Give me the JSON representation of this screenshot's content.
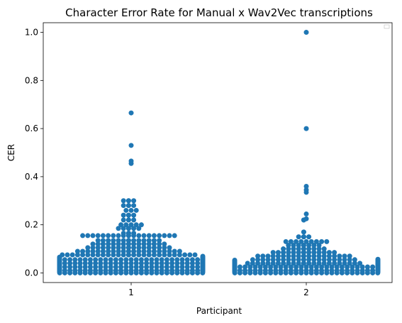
{
  "chart_data": {
    "type": "scatter",
    "subtype": "swarm",
    "title": "Character Error Rate for Manual x Wav2Vec transcriptions",
    "xlabel": "Participant",
    "ylabel": "CER",
    "categories": [
      "1",
      "2"
    ],
    "ylim": [
      -0.04,
      1.04
    ],
    "yticks": [
      0.0,
      0.2,
      0.4,
      0.6,
      0.8,
      1.0
    ],
    "ytick_labels": [
      "0.0",
      "0.2",
      "0.4",
      "0.6",
      "0.8",
      "1.0"
    ],
    "grid": false,
    "legend": "top-right (empty)",
    "marker_color": "#1f77b4",
    "series": [
      {
        "category": "1",
        "values": [
          0.0,
          0.0,
          0.0,
          0.0,
          0.0,
          0.0,
          0.0,
          0.0,
          0.0,
          0.0,
          0.0,
          0.0,
          0.0,
          0.0,
          0.0,
          0.0,
          0.0,
          0.0,
          0.0,
          0.0,
          0.0,
          0.0,
          0.0,
          0.0,
          0.0,
          0.0,
          0.0,
          0.0,
          0.0,
          0.0,
          0.0,
          0.0,
          0.0,
          0.0,
          0.0,
          0.0,
          0.0,
          0.0,
          0.0,
          0.0,
          0.0,
          0.0,
          0.0,
          0.0,
          0.0,
          0.0,
          0.0,
          0.0,
          0.0,
          0.0,
          0.0,
          0.0,
          0.0,
          0.0,
          0.0,
          0.0,
          0.0,
          0.0,
          0.0,
          0.0,
          0.01,
          0.01,
          0.01,
          0.01,
          0.01,
          0.01,
          0.01,
          0.01,
          0.01,
          0.01,
          0.01,
          0.01,
          0.01,
          0.01,
          0.01,
          0.01,
          0.01,
          0.01,
          0.01,
          0.01,
          0.01,
          0.01,
          0.01,
          0.01,
          0.01,
          0.01,
          0.01,
          0.01,
          0.01,
          0.01,
          0.01,
          0.01,
          0.01,
          0.01,
          0.01,
          0.01,
          0.01,
          0.01,
          0.01,
          0.01,
          0.01,
          0.01,
          0.01,
          0.01,
          0.01,
          0.01,
          0.01,
          0.01,
          0.01,
          0.01,
          0.025,
          0.025,
          0.025,
          0.025,
          0.025,
          0.025,
          0.025,
          0.025,
          0.025,
          0.025,
          0.025,
          0.025,
          0.025,
          0.025,
          0.025,
          0.025,
          0.025,
          0.025,
          0.025,
          0.025,
          0.025,
          0.025,
          0.025,
          0.025,
          0.025,
          0.025,
          0.025,
          0.025,
          0.025,
          0.025,
          0.025,
          0.025,
          0.025,
          0.025,
          0.025,
          0.025,
          0.025,
          0.025,
          0.025,
          0.025,
          0.04,
          0.04,
          0.04,
          0.04,
          0.04,
          0.04,
          0.04,
          0.04,
          0.04,
          0.04,
          0.04,
          0.04,
          0.04,
          0.04,
          0.04,
          0.04,
          0.04,
          0.04,
          0.04,
          0.04,
          0.04,
          0.04,
          0.04,
          0.04,
          0.04,
          0.04,
          0.04,
          0.04,
          0.04,
          0.04,
          0.04,
          0.04,
          0.04,
          0.04,
          0.04,
          0.04,
          0.04,
          0.04,
          0.055,
          0.055,
          0.055,
          0.055,
          0.055,
          0.055,
          0.055,
          0.055,
          0.055,
          0.055,
          0.055,
          0.055,
          0.055,
          0.055,
          0.055,
          0.055,
          0.055,
          0.055,
          0.055,
          0.055,
          0.055,
          0.055,
          0.055,
          0.055,
          0.055,
          0.055,
          0.055,
          0.055,
          0.055,
          0.055,
          0.055,
          0.055,
          0.055,
          0.055,
          0.055,
          0.055,
          0.075,
          0.075,
          0.075,
          0.075,
          0.075,
          0.075,
          0.075,
          0.075,
          0.075,
          0.075,
          0.075,
          0.075,
          0.075,
          0.075,
          0.075,
          0.075,
          0.075,
          0.075,
          0.075,
          0.075,
          0.075,
          0.075,
          0.075,
          0.075,
          0.075,
          0.075,
          0.075,
          0.075,
          0.09,
          0.09,
          0.09,
          0.09,
          0.09,
          0.09,
          0.09,
          0.09,
          0.09,
          0.09,
          0.09,
          0.09,
          0.09,
          0.09,
          0.09,
          0.09,
          0.09,
          0.09,
          0.09,
          0.09,
          0.09,
          0.09,
          0.105,
          0.105,
          0.105,
          0.105,
          0.105,
          0.105,
          0.105,
          0.105,
          0.105,
          0.105,
          0.105,
          0.105,
          0.105,
          0.105,
          0.105,
          0.105,
          0.105,
          0.105,
          0.12,
          0.12,
          0.12,
          0.12,
          0.12,
          0.12,
          0.12,
          0.12,
          0.12,
          0.12,
          0.12,
          0.12,
          0.12,
          0.12,
          0.12,
          0.12,
          0.135,
          0.135,
          0.135,
          0.135,
          0.135,
          0.135,
          0.135,
          0.135,
          0.135,
          0.135,
          0.135,
          0.135,
          0.135,
          0.135,
          0.155,
          0.155,
          0.155,
          0.155,
          0.155,
          0.155,
          0.155,
          0.155,
          0.155,
          0.155,
          0.155,
          0.155,
          0.155,
          0.155,
          0.155,
          0.155,
          0.155,
          0.155,
          0.155,
          0.155,
          0.165,
          0.165,
          0.165,
          0.165,
          0.185,
          0.185,
          0.185,
          0.185,
          0.185,
          0.185,
          0.2,
          0.2,
          0.2,
          0.2,
          0.2,
          0.22,
          0.22,
          0.22,
          0.22,
          0.24,
          0.24,
          0.24,
          0.24,
          0.26,
          0.26,
          0.26,
          0.28,
          0.28,
          0.28,
          0.28,
          0.3,
          0.3,
          0.3,
          0.3,
          0.455,
          0.465,
          0.53,
          0.665
        ]
      },
      {
        "category": "2",
        "values": [
          0.0,
          0.0,
          0.0,
          0.0,
          0.0,
          0.0,
          0.0,
          0.0,
          0.0,
          0.0,
          0.0,
          0.0,
          0.0,
          0.0,
          0.0,
          0.0,
          0.0,
          0.0,
          0.0,
          0.0,
          0.0,
          0.0,
          0.0,
          0.0,
          0.0,
          0.0,
          0.0,
          0.0,
          0.0,
          0.0,
          0.0,
          0.0,
          0.0,
          0.0,
          0.0,
          0.0,
          0.0,
          0.0,
          0.0,
          0.0,
          0.0,
          0.0,
          0.0,
          0.0,
          0.0,
          0.0,
          0.0,
          0.0,
          0.0,
          0.0,
          0.0,
          0.0,
          0.0,
          0.0,
          0.0,
          0.0,
          0.0,
          0.0,
          0.0,
          0.0,
          0.01,
          0.01,
          0.01,
          0.01,
          0.01,
          0.01,
          0.01,
          0.01,
          0.01,
          0.01,
          0.01,
          0.01,
          0.01,
          0.01,
          0.01,
          0.01,
          0.01,
          0.01,
          0.01,
          0.01,
          0.01,
          0.01,
          0.01,
          0.01,
          0.01,
          0.01,
          0.01,
          0.01,
          0.01,
          0.01,
          0.01,
          0.01,
          0.01,
          0.01,
          0.01,
          0.01,
          0.01,
          0.01,
          0.01,
          0.01,
          0.025,
          0.025,
          0.025,
          0.025,
          0.025,
          0.025,
          0.025,
          0.025,
          0.025,
          0.025,
          0.025,
          0.025,
          0.025,
          0.025,
          0.025,
          0.025,
          0.025,
          0.025,
          0.025,
          0.025,
          0.025,
          0.025,
          0.025,
          0.025,
          0.025,
          0.025,
          0.025,
          0.025,
          0.025,
          0.025,
          0.025,
          0.025,
          0.025,
          0.025,
          0.025,
          0.025,
          0.025,
          0.025,
          0.025,
          0.025,
          0.04,
          0.04,
          0.04,
          0.04,
          0.04,
          0.04,
          0.04,
          0.04,
          0.04,
          0.04,
          0.04,
          0.04,
          0.04,
          0.04,
          0.04,
          0.04,
          0.04,
          0.04,
          0.04,
          0.04,
          0.04,
          0.04,
          0.04,
          0.04,
          0.055,
          0.055,
          0.055,
          0.055,
          0.055,
          0.055,
          0.055,
          0.055,
          0.055,
          0.055,
          0.055,
          0.055,
          0.055,
          0.055,
          0.055,
          0.055,
          0.055,
          0.055,
          0.055,
          0.055,
          0.055,
          0.055,
          0.07,
          0.07,
          0.07,
          0.07,
          0.07,
          0.07,
          0.07,
          0.07,
          0.07,
          0.07,
          0.07,
          0.07,
          0.07,
          0.07,
          0.07,
          0.07,
          0.07,
          0.07,
          0.07,
          0.07,
          0.085,
          0.085,
          0.085,
          0.085,
          0.085,
          0.085,
          0.085,
          0.085,
          0.085,
          0.085,
          0.085,
          0.085,
          0.085,
          0.085,
          0.1,
          0.1,
          0.1,
          0.1,
          0.1,
          0.1,
          0.1,
          0.1,
          0.1,
          0.1,
          0.115,
          0.115,
          0.115,
          0.115,
          0.115,
          0.115,
          0.115,
          0.115,
          0.13,
          0.13,
          0.13,
          0.13,
          0.13,
          0.13,
          0.13,
          0.13,
          0.13,
          0.15,
          0.15,
          0.15,
          0.15,
          0.17,
          0.17,
          0.22,
          0.22,
          0.225,
          0.245,
          0.335,
          0.345,
          0.36,
          0.6,
          1.0
        ]
      }
    ]
  }
}
